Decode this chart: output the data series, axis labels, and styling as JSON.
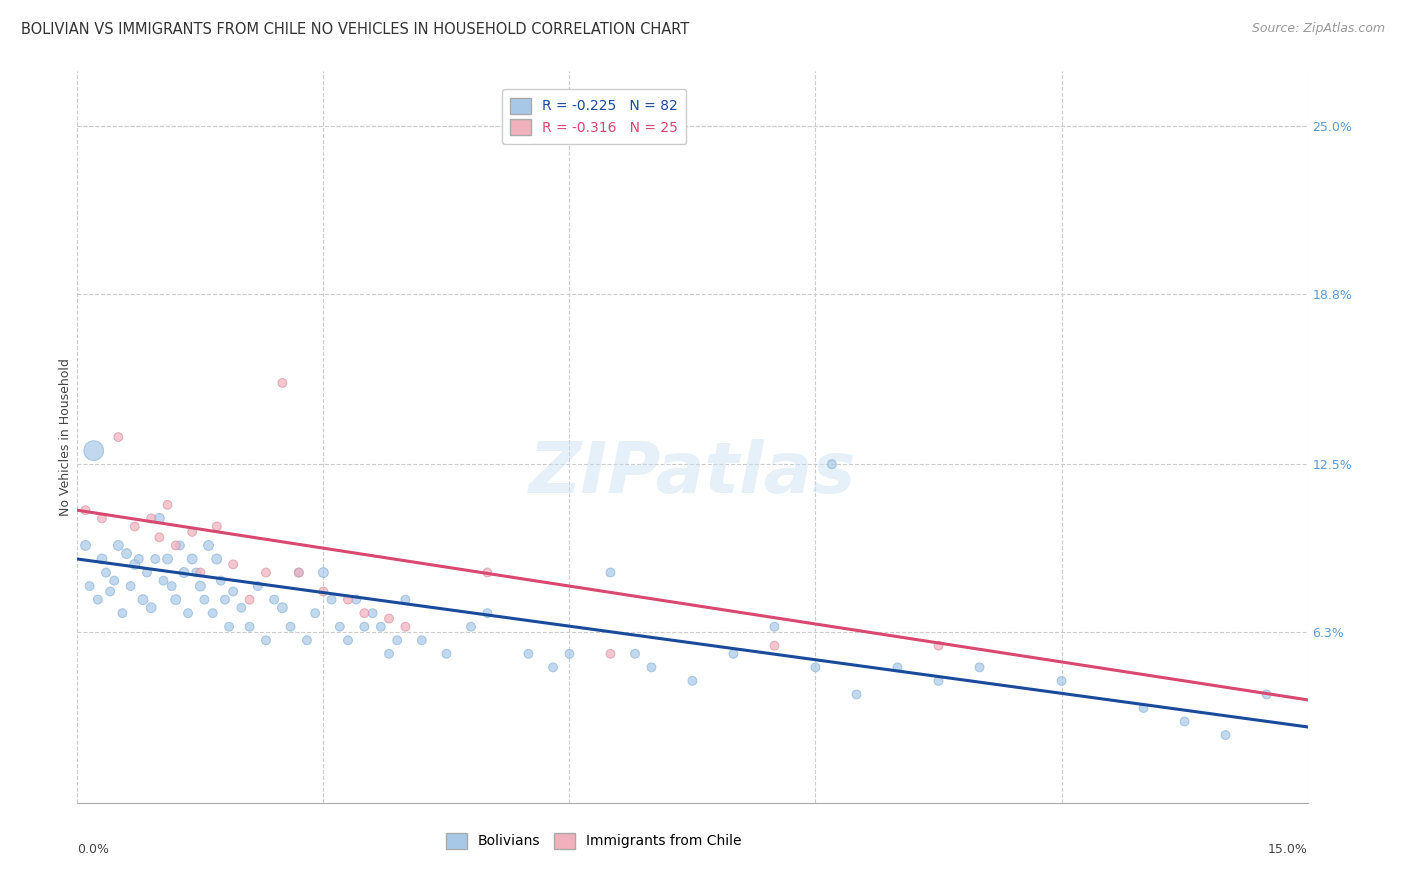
{
  "title": "BOLIVIAN VS IMMIGRANTS FROM CHILE NO VEHICLES IN HOUSEHOLD CORRELATION CHART",
  "source": "Source: ZipAtlas.com",
  "ylabel": "No Vehicles in Household",
  "xmin": 0.0,
  "xmax": 15.0,
  "ymin": 0.0,
  "ymax": 27.0,
  "blue_color": "#A8C8E8",
  "pink_color": "#F0B0BC",
  "blue_line_color": "#1A4A9A",
  "pink_line_color": "#D84870",
  "watermark": "ZIPatlas",
  "legend_r1": "R = -0.225",
  "legend_n1": "N = 82",
  "legend_r2": "R = -0.316",
  "legend_n2": "N = 25",
  "blue_reg_x0": 0.0,
  "blue_reg_y0": 9.0,
  "blue_reg_x1": 15.0,
  "blue_reg_y1": 2.8,
  "pink_reg_x0": 0.0,
  "pink_reg_y0": 10.8,
  "pink_reg_x1": 15.0,
  "pink_reg_y1": 3.8,
  "blue_scatter_x": [
    0.1,
    0.15,
    0.2,
    0.25,
    0.3,
    0.35,
    0.4,
    0.45,
    0.5,
    0.55,
    0.6,
    0.65,
    0.7,
    0.75,
    0.8,
    0.85,
    0.9,
    0.95,
    1.0,
    1.05,
    1.1,
    1.15,
    1.2,
    1.25,
    1.3,
    1.35,
    1.4,
    1.45,
    1.5,
    1.55,
    1.6,
    1.65,
    1.7,
    1.75,
    1.8,
    1.85,
    1.9,
    2.0,
    2.1,
    2.2,
    2.3,
    2.4,
    2.5,
    2.6,
    2.7,
    2.8,
    2.9,
    3.0,
    3.1,
    3.2,
    3.3,
    3.4,
    3.5,
    3.6,
    3.7,
    3.8,
    3.9,
    4.0,
    4.2,
    4.5,
    4.8,
    5.0,
    5.5,
    6.0,
    6.5,
    7.0,
    7.5,
    8.0,
    9.0,
    9.5,
    10.0,
    10.5,
    11.0,
    12.0,
    13.0,
    13.5,
    14.0,
    14.5,
    5.8,
    6.8,
    8.5,
    9.2
  ],
  "blue_scatter_y": [
    9.5,
    8.0,
    13.0,
    7.5,
    9.0,
    8.5,
    7.8,
    8.2,
    9.5,
    7.0,
    9.2,
    8.0,
    8.8,
    9.0,
    7.5,
    8.5,
    7.2,
    9.0,
    10.5,
    8.2,
    9.0,
    8.0,
    7.5,
    9.5,
    8.5,
    7.0,
    9.0,
    8.5,
    8.0,
    7.5,
    9.5,
    7.0,
    9.0,
    8.2,
    7.5,
    6.5,
    7.8,
    7.2,
    6.5,
    8.0,
    6.0,
    7.5,
    7.2,
    6.5,
    8.5,
    6.0,
    7.0,
    8.5,
    7.5,
    6.5,
    6.0,
    7.5,
    6.5,
    7.0,
    6.5,
    5.5,
    6.0,
    7.5,
    6.0,
    5.5,
    6.5,
    7.0,
    5.5,
    5.5,
    8.5,
    5.0,
    4.5,
    5.5,
    5.0,
    4.0,
    5.0,
    4.5,
    5.0,
    4.5,
    3.5,
    3.0,
    2.5,
    4.0,
    5.0,
    5.5,
    6.5,
    12.5
  ],
  "blue_scatter_size": [
    50,
    40,
    200,
    40,
    50,
    40,
    40,
    40,
    50,
    40,
    50,
    40,
    50,
    40,
    50,
    40,
    50,
    40,
    50,
    40,
    50,
    40,
    50,
    40,
    50,
    40,
    50,
    40,
    50,
    40,
    50,
    40,
    50,
    40,
    40,
    40,
    40,
    40,
    40,
    40,
    40,
    40,
    50,
    40,
    40,
    40,
    40,
    50,
    40,
    40,
    40,
    40,
    40,
    40,
    40,
    40,
    40,
    40,
    40,
    40,
    40,
    40,
    40,
    40,
    40,
    40,
    40,
    40,
    40,
    40,
    40,
    40,
    40,
    40,
    40,
    40,
    40,
    40,
    40,
    40,
    40,
    40
  ],
  "pink_scatter_x": [
    0.1,
    0.3,
    0.5,
    0.7,
    0.9,
    1.0,
    1.1,
    1.2,
    1.4,
    1.5,
    1.7,
    1.9,
    2.1,
    2.3,
    2.5,
    2.7,
    3.0,
    3.3,
    3.5,
    3.8,
    4.0,
    5.0,
    6.5,
    8.5,
    10.5
  ],
  "pink_scatter_y": [
    10.8,
    10.5,
    13.5,
    10.2,
    10.5,
    9.8,
    11.0,
    9.5,
    10.0,
    8.5,
    10.2,
    8.8,
    7.5,
    8.5,
    15.5,
    8.5,
    7.8,
    7.5,
    7.0,
    6.8,
    6.5,
    8.5,
    5.5,
    5.8,
    5.8
  ],
  "pink_scatter_size": [
    40,
    40,
    40,
    40,
    40,
    40,
    40,
    40,
    40,
    40,
    40,
    40,
    40,
    40,
    40,
    40,
    40,
    40,
    40,
    40,
    40,
    40,
    40,
    40,
    40
  ],
  "grid_color": "#CCCCCC",
  "background_color": "#FFFFFF",
  "title_fontsize": 10.5,
  "source_fontsize": 9,
  "axis_label_fontsize": 9,
  "tick_fontsize": 9,
  "legend_fontsize": 10,
  "watermark_fontsize": 52,
  "watermark_color": "#C8DFF0",
  "watermark_alpha": 0.45,
  "ytick_vals": [
    6.3,
    12.5,
    18.8,
    25.0
  ],
  "ytick_labels": [
    "6.3%",
    "12.5%",
    "18.8%",
    "25.0%"
  ],
  "xtick_grid": [
    0,
    3.0,
    6.0,
    9.0,
    12.0,
    15.0
  ]
}
